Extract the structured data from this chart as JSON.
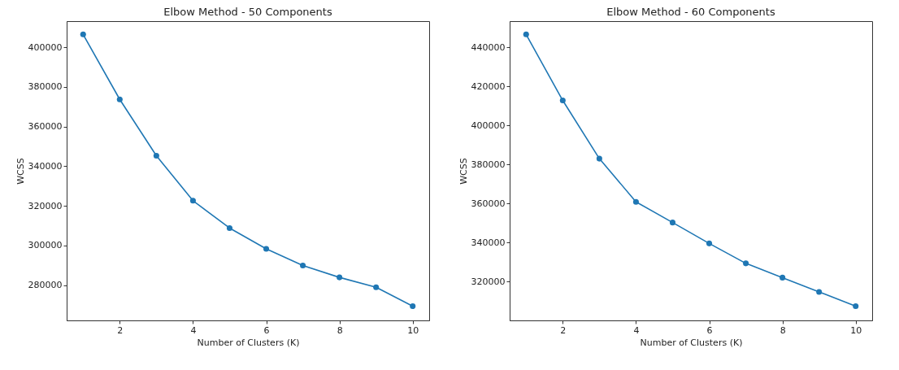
{
  "chart_data": [
    {
      "type": "line",
      "title": "Elbow Method - 50 Components",
      "xlabel": "Number of Clusters (K)",
      "ylabel": "WCSS",
      "x": [
        1,
        2,
        3,
        4,
        5,
        6,
        7,
        8,
        9,
        10
      ],
      "series": [
        {
          "color": "#1f77b4",
          "values": [
            406500,
            373700,
            345300,
            322600,
            308800,
            298300,
            289900,
            283900,
            278900,
            269400
          ]
        }
      ],
      "xlim": [
        0.55,
        10.45
      ],
      "xticks": [
        2,
        4,
        6,
        8,
        10
      ],
      "ylim": [
        262200,
        413200
      ],
      "yticks": [
        280000,
        300000,
        320000,
        340000,
        360000,
        380000,
        400000
      ],
      "marker": "circle",
      "grid": false,
      "legend": false
    },
    {
      "type": "line",
      "title": "Elbow Method - 60 Components",
      "xlabel": "Number of Clusters (K)",
      "ylabel": "WCSS",
      "x": [
        1,
        2,
        3,
        4,
        5,
        6,
        7,
        8,
        9,
        10
      ],
      "series": [
        {
          "color": "#1f77b4",
          "values": [
            446600,
            412800,
            383000,
            360900,
            350300,
            339600,
            329400,
            322100,
            314800,
            307500
          ]
        }
      ],
      "xlim": [
        0.55,
        10.45
      ],
      "xticks": [
        2,
        4,
        6,
        8,
        10
      ],
      "ylim": [
        300200,
        453400
      ],
      "yticks": [
        320000,
        340000,
        360000,
        380000,
        400000,
        420000,
        440000
      ],
      "marker": "circle",
      "grid": false,
      "legend": false
    }
  ]
}
